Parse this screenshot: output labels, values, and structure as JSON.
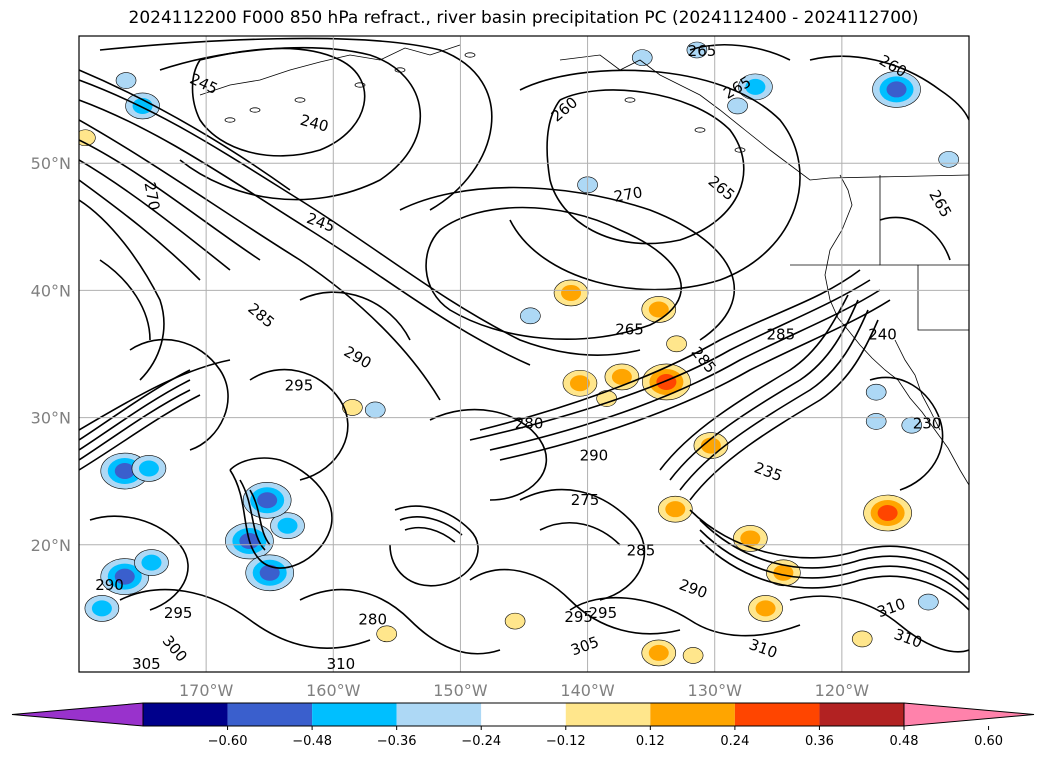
{
  "title": "2024112200 F000 850 hPa refract., river basin precipitation PC (2024112400 - 2024112700)",
  "map": {
    "lat_ticks": [
      {
        "label": "50°N",
        "lat": 50
      },
      {
        "label": "40°N",
        "lat": 40
      },
      {
        "label": "30°N",
        "lat": 30
      },
      {
        "label": "20°N",
        "lat": 20
      }
    ],
    "lon_ticks": [
      {
        "label": "170°W",
        "lon": -170
      },
      {
        "label": "160°W",
        "lon": -160
      },
      {
        "label": "150°W",
        "lon": -150
      },
      {
        "label": "140°W",
        "lon": -140
      },
      {
        "label": "130°W",
        "lon": -130
      },
      {
        "label": "120°W",
        "lon": -120
      }
    ],
    "lat_range": [
      10,
      60
    ],
    "lon_range": [
      -180,
      -110
    ],
    "contour_labels": [
      {
        "text": "245",
        "lon": -170.2,
        "lat": 56.2,
        "rot": 25
      },
      {
        "text": "240",
        "lon": -161.5,
        "lat": 53.1,
        "rot": 15
      },
      {
        "text": "245",
        "lon": -161.0,
        "lat": 45.3,
        "rot": 20
      },
      {
        "text": "260",
        "lon": -141.8,
        "lat": 54.2,
        "rot": -40
      },
      {
        "text": "270",
        "lon": -136.8,
        "lat": 47.5,
        "rot": -10
      },
      {
        "text": "265",
        "lon": -131.0,
        "lat": 58.8,
        "rot": 0
      },
      {
        "text": "265",
        "lon": -128.2,
        "lat": 55.9,
        "rot": -30
      },
      {
        "text": "265",
        "lon": -129.5,
        "lat": 48.0,
        "rot": 40
      },
      {
        "text": "260",
        "lon": -116.0,
        "lat": 57.6,
        "rot": 30
      },
      {
        "text": "265",
        "lon": -112.3,
        "lat": 46.8,
        "rot": 60
      },
      {
        "text": "270",
        "lon": -174.3,
        "lat": 47.4,
        "rot": 80
      },
      {
        "text": "285",
        "lon": -165.7,
        "lat": 38.0,
        "rot": 40
      },
      {
        "text": "290",
        "lon": -158.1,
        "lat": 34.7,
        "rot": 30
      },
      {
        "text": "295",
        "lon": -162.7,
        "lat": 32.5,
        "rot": 0
      },
      {
        "text": "265",
        "lon": -136.7,
        "lat": 36.9,
        "rot": 0
      },
      {
        "text": "280",
        "lon": -144.6,
        "lat": 29.5,
        "rot": 0
      },
      {
        "text": "290",
        "lon": -139.5,
        "lat": 27.0,
        "rot": 0
      },
      {
        "text": "285",
        "lon": -124.8,
        "lat": 36.5,
        "rot": 0
      },
      {
        "text": "285",
        "lon": -130.9,
        "lat": 34.5,
        "rot": 50
      },
      {
        "text": "240",
        "lon": -116.8,
        "lat": 36.5,
        "rot": 0
      },
      {
        "text": "230",
        "lon": -113.3,
        "lat": 29.5,
        "rot": 0
      },
      {
        "text": "235",
        "lon": -125.8,
        "lat": 25.7,
        "rot": 20
      },
      {
        "text": "275",
        "lon": -140.2,
        "lat": 23.5,
        "rot": 0
      },
      {
        "text": "285",
        "lon": -135.8,
        "lat": 19.5,
        "rot": 0
      },
      {
        "text": "290",
        "lon": -131.7,
        "lat": 16.5,
        "rot": 20
      },
      {
        "text": "290",
        "lon": -177.6,
        "lat": 16.8,
        "rot": 0
      },
      {
        "text": "295",
        "lon": -172.2,
        "lat": 14.6,
        "rot": 0
      },
      {
        "text": "300",
        "lon": -172.5,
        "lat": 11.8,
        "rot": 50
      },
      {
        "text": "295",
        "lon": -140.7,
        "lat": 14.3,
        "rot": 0
      },
      {
        "text": "295",
        "lon": -138.8,
        "lat": 14.6,
        "rot": 0
      },
      {
        "text": "305",
        "lon": -140.2,
        "lat": 12.0,
        "rot": -20
      },
      {
        "text": "310",
        "lon": -126.2,
        "lat": 11.8,
        "rot": 20
      },
      {
        "text": "310",
        "lon": -116.1,
        "lat": 15.0,
        "rot": -20
      },
      {
        "text": "310",
        "lon": -114.8,
        "lat": 12.6,
        "rot": 20
      },
      {
        "text": "305",
        "lon": -174.7,
        "lat": 10.6,
        "rot": 0
      },
      {
        "text": "310",
        "lon": -159.4,
        "lat": 10.6,
        "rot": 0
      },
      {
        "text": "280",
        "lon": -156.9,
        "lat": 14.1,
        "rot": 0
      }
    ]
  },
  "colorbar": {
    "colors": [
      "#9932cc",
      "#00008b",
      "#3a5fcd",
      "#00bfff",
      "#add8f5",
      "#ffffff",
      "#ffe68c",
      "#ffa500",
      "#ff4500",
      "#b22222",
      "#ff82ab"
    ],
    "tick_labels": [
      "−0.60",
      "−0.48",
      "−0.36",
      "−0.24",
      "−0.12",
      "0.12",
      "0.24",
      "0.36",
      "0.48",
      "0.60"
    ]
  },
  "precip_patches": [
    {
      "lon": -133.8,
      "lat": 32.8,
      "cat": "warm",
      "level": 3
    },
    {
      "lon": -137.3,
      "lat": 33.2,
      "cat": "warm",
      "level": 2
    },
    {
      "lon": -140.6,
      "lat": 32.7,
      "cat": "warm",
      "level": 2
    },
    {
      "lon": -134.4,
      "lat": 38.5,
      "cat": "warm",
      "level": 2
    },
    {
      "lon": -141.3,
      "lat": 39.8,
      "cat": "warm",
      "level": 2
    },
    {
      "lon": -138.5,
      "lat": 31.5,
      "cat": "warm",
      "level": 1
    },
    {
      "lon": -133.0,
      "lat": 35.8,
      "cat": "warm",
      "level": 1
    },
    {
      "lon": -130.3,
      "lat": 27.8,
      "cat": "warm",
      "level": 2
    },
    {
      "lon": -133.1,
      "lat": 22.8,
      "cat": "warm",
      "level": 2
    },
    {
      "lon": -124.6,
      "lat": 17.8,
      "cat": "warm",
      "level": 2
    },
    {
      "lon": -116.4,
      "lat": 22.5,
      "cat": "warm",
      "level": 3
    },
    {
      "lon": -127.2,
      "lat": 20.5,
      "cat": "warm",
      "level": 2
    },
    {
      "lon": -134.4,
      "lat": 11.5,
      "cat": "warm",
      "level": 2
    },
    {
      "lon": -131.7,
      "lat": 11.3,
      "cat": "warm",
      "level": 1
    },
    {
      "lon": -126.0,
      "lat": 15.0,
      "cat": "warm",
      "level": 2
    },
    {
      "lon": -118.4,
      "lat": 12.6,
      "cat": "warm",
      "level": 1
    },
    {
      "lon": -145.7,
      "lat": 14.0,
      "cat": "warm",
      "level": 1
    },
    {
      "lon": -155.8,
      "lat": 13.0,
      "cat": "warm",
      "level": 1
    },
    {
      "lon": -158.5,
      "lat": 30.8,
      "cat": "warm",
      "level": 1
    },
    {
      "lon": -179.5,
      "lat": 52.0,
      "cat": "warm",
      "level": 1
    },
    {
      "lon": -131.4,
      "lat": 58.9,
      "cat": "cold",
      "level": 1
    },
    {
      "lon": -126.8,
      "lat": 56.0,
      "cat": "cold",
      "level": 2
    },
    {
      "lon": -128.2,
      "lat": 54.5,
      "cat": "cold",
      "level": 1
    },
    {
      "lon": -115.7,
      "lat": 55.8,
      "cat": "cold",
      "level": 3
    },
    {
      "lon": -111.6,
      "lat": 50.3,
      "cat": "cold",
      "level": 1
    },
    {
      "lon": -135.7,
      "lat": 58.3,
      "cat": "cold",
      "level": 1
    },
    {
      "lon": -176.3,
      "lat": 56.5,
      "cat": "cold",
      "level": 1
    },
    {
      "lon": -175.0,
      "lat": 54.5,
      "cat": "cold",
      "level": 2
    },
    {
      "lon": -176.4,
      "lat": 25.8,
      "cat": "cold",
      "level": 3
    },
    {
      "lon": -174.5,
      "lat": 26.0,
      "cat": "cold",
      "level": 2
    },
    {
      "lon": -163.6,
      "lat": 21.5,
      "cat": "cold",
      "level": 2
    },
    {
      "lon": -165.2,
      "lat": 23.5,
      "cat": "cold",
      "level": 3
    },
    {
      "lon": -166.6,
      "lat": 20.3,
      "cat": "cold",
      "level": 3
    },
    {
      "lon": -176.4,
      "lat": 17.5,
      "cat": "cold",
      "level": 3
    },
    {
      "lon": -178.2,
      "lat": 15.0,
      "cat": "cold",
      "level": 2
    },
    {
      "lon": -174.3,
      "lat": 18.6,
      "cat": "cold",
      "level": 2
    },
    {
      "lon": -165.0,
      "lat": 17.8,
      "cat": "cold",
      "level": 3
    },
    {
      "lon": -156.7,
      "lat": 30.6,
      "cat": "cold",
      "level": 1
    },
    {
      "lon": -140.0,
      "lat": 48.3,
      "cat": "cold",
      "level": 1
    },
    {
      "lon": -117.3,
      "lat": 32.0,
      "cat": "cold",
      "level": 1
    },
    {
      "lon": -114.5,
      "lat": 29.4,
      "cat": "cold",
      "level": 1
    },
    {
      "lon": -117.3,
      "lat": 29.7,
      "cat": "cold",
      "level": 1
    },
    {
      "lon": -113.2,
      "lat": 15.5,
      "cat": "cold",
      "level": 1
    },
    {
      "lon": -144.5,
      "lat": 38.0,
      "cat": "cold",
      "level": 1
    }
  ]
}
